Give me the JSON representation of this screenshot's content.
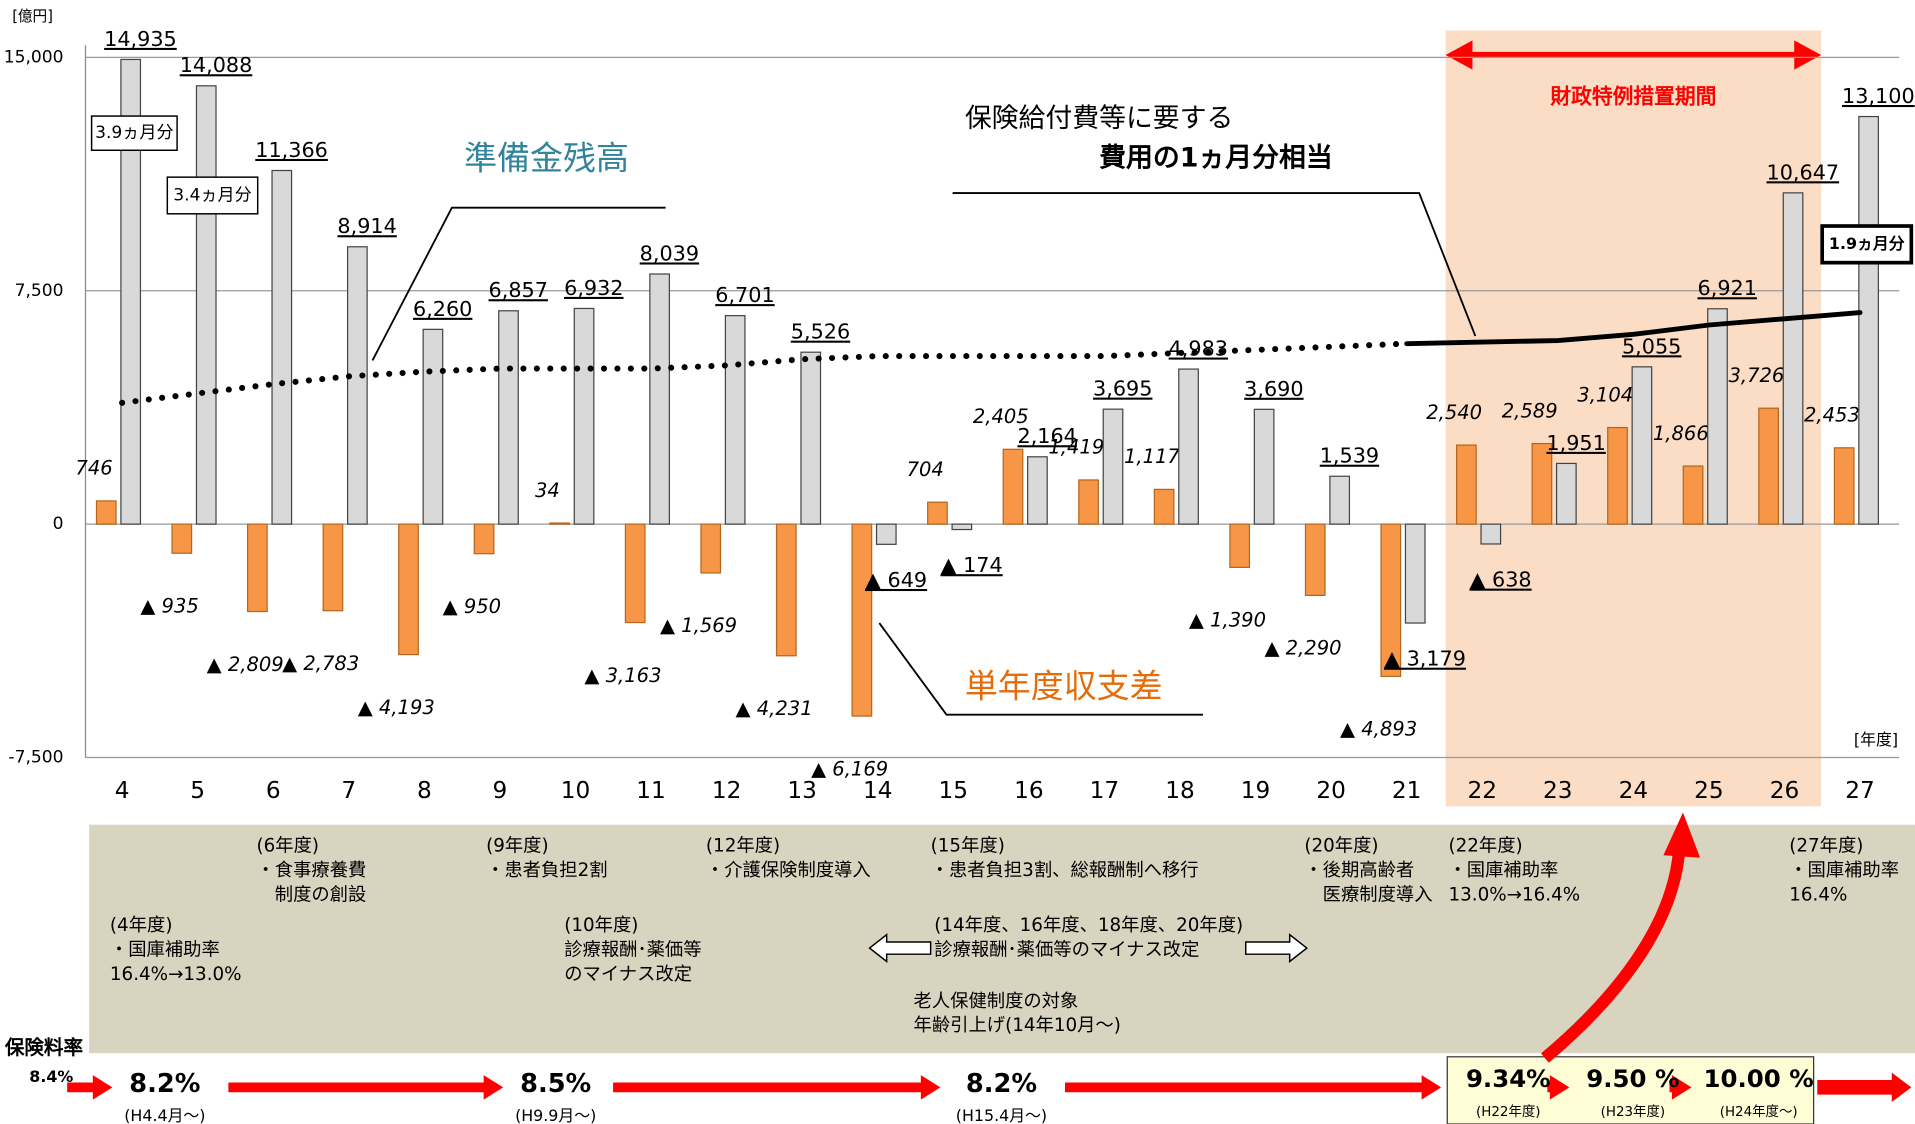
{
  "chart_data": {
    "type": "bar",
    "categories": [
      "4",
      "5",
      "6",
      "7",
      "8",
      "9",
      "10",
      "11",
      "12",
      "13",
      "14",
      "15",
      "16",
      "17",
      "18",
      "19",
      "20",
      "21",
      "22",
      "23",
      "24",
      "25",
      "26",
      "27"
    ],
    "series": [
      {
        "name": "単年度収支差",
        "color": "#f79646",
        "values": [
          746,
          -935,
          -2809,
          -2783,
          -4193,
          -950,
          34,
          -3163,
          -1569,
          -4231,
          -6169,
          704,
          2405,
          1419,
          1117,
          -1390,
          -2290,
          -4893,
          2540,
          2589,
          3104,
          1866,
          3726,
          2453
        ],
        "value_labels": [
          "746",
          "▲ 935",
          "▲ 2,809",
          "▲ 2,783",
          "▲ 4,193",
          "▲ 950",
          "34",
          "▲ 3,163",
          "▲ 1,569",
          "▲ 4,231",
          "▲ 6,169",
          "704",
          "2,405",
          "1,419",
          "1,117",
          "▲ 1,390",
          "▲ 2,290",
          "▲ 4,893",
          "2,540",
          "2,589",
          "3,104",
          "1,866",
          "3,726",
          "2,453"
        ]
      },
      {
        "name": "準備金残高",
        "color": "#d9d9d9",
        "values": [
          14935,
          14088,
          11366,
          8914,
          6260,
          6857,
          6932,
          8039,
          6701,
          5526,
          -649,
          -174,
          2164,
          3695,
          4983,
          3690,
          1539,
          -3179,
          -638,
          1951,
          5055,
          6921,
          10647,
          13100
        ],
        "value_labels": [
          "14,935",
          "14,088",
          "11,366",
          "8,914",
          "6,260",
          "6,857",
          "6,932",
          "8,039",
          "6,701",
          "5,526",
          "▲ 649",
          "▲ 174",
          "2,164",
          "3,695",
          "4,983",
          "3,690",
          "1,539",
          "▲ 3,179",
          "▲ 638",
          "1,951",
          "5,055",
          "6,921",
          "10,647",
          "13,100"
        ]
      },
      {
        "type": "line",
        "name": [
          "保険給付費等に要する",
          "費用の1ヵ月分相当"
        ],
        "color": "#000000",
        "solid_from": "21",
        "values": [
          3900,
          4200,
          4500,
          4750,
          4900,
          5000,
          5000,
          5000,
          5100,
          5300,
          5400,
          5400,
          5400,
          5400,
          5500,
          5600,
          5700,
          5800,
          5850,
          5900,
          6100,
          6400,
          6600,
          6800
        ]
      }
    ],
    "ylim": [
      -7500,
      15000
    ],
    "yticks": [
      {
        "value": -7500,
        "label": "-7,500"
      },
      0,
      {
        "value": 7500,
        "label": "7,500"
      },
      {
        "value": 15000,
        "label": "15,000"
      }
    ],
    "grid": true,
    "y_unit": "[億円]",
    "x_unit": "[年度]",
    "period_label": "財政特例措置期間",
    "period_range": [
      "22",
      "26"
    ],
    "month_boxes": [
      "3.9ヵ月分",
      "3.4ヵ月分",
      "1.9ヵ月分"
    ]
  },
  "notes": [
    [
      "(4年度)",
      "・国庫補助率",
      "16.4%→13.0%"
    ],
    [
      "(6年度)",
      "・食事療養費",
      "　制度の創設"
    ],
    [
      "(9年度)",
      "・患者負担2割"
    ],
    [
      "(10年度)",
      "診療報酬･薬価等",
      "のマイナス改定"
    ],
    [
      "(12年度)",
      "・介護保険制度導入"
    ],
    [
      "(15年度)",
      "・患者負担3割、総報酬制へ移行"
    ],
    [
      "(14年度、16年度、18年度、20年度)",
      "診療報酬･薬価等のマイナス改定"
    ],
    [
      "老人保健制度の対象",
      "年齢引上げ(14年10月～)"
    ],
    [
      "(20年度)",
      "・後期高齢者",
      "　医療制度導入"
    ],
    [
      "(22年度)",
      "・国庫補助率",
      "13.0%→16.4%"
    ],
    [
      "(27年度)",
      "・国庫補助率",
      "16.4%"
    ]
  ],
  "premium": {
    "label": "保険料率",
    "initial": "8.4%",
    "items": [
      {
        "rate": "8.2%",
        "period": "(H4.4月～)"
      },
      {
        "rate": "8.5%",
        "period": "(H9.9月～)"
      },
      {
        "rate": "8.2%",
        "period": "(H15.4月～)"
      },
      {
        "rate": "9.34%",
        "period": "(H22年度)"
      },
      {
        "rate": "9.50 %",
        "period": "(H23年度)"
      },
      {
        "rate": "10.00 %",
        "period": "(H24年度～)"
      }
    ]
  }
}
